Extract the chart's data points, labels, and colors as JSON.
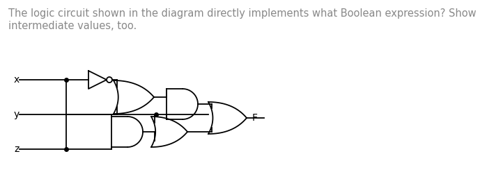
{
  "title_line1": "The logic circuit shown in the diagram directly implements what Boolean expression? Show",
  "title_line2": "intermediate values, too.",
  "title_color": "#888888",
  "title_fontsize": 10.5,
  "bg_color": "#ffffff",
  "line_color": "#000000",
  "label_x": "x",
  "label_y": "y",
  "label_z": "z",
  "label_F": "F",
  "figsize": [
    6.99,
    2.71
  ],
  "dpi": 100
}
